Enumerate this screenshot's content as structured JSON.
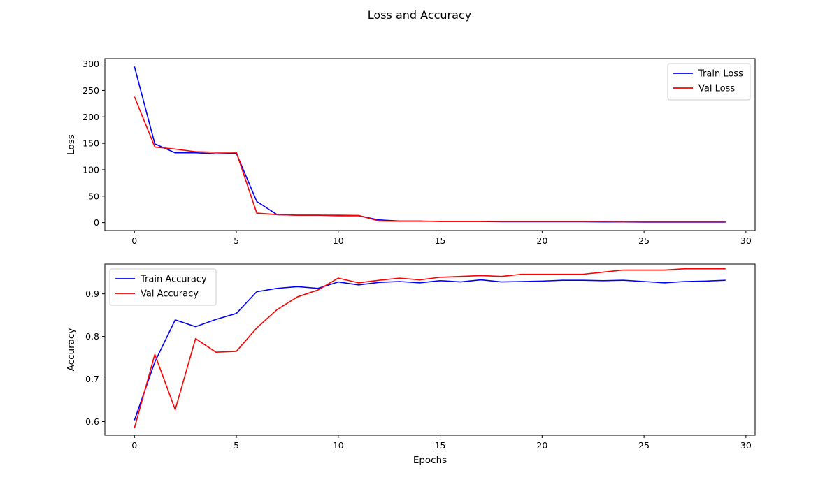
{
  "chart_data": {
    "title": "Loss and Accuracy",
    "subplots": [
      {
        "type": "line",
        "ylabel": "Loss",
        "xlabel": "",
        "xlim": [
          -1.45,
          30.45
        ],
        "ylim": [
          -15,
          310
        ],
        "xticks": [
          0,
          5,
          10,
          15,
          20,
          25,
          30
        ],
        "yticks": [
          0,
          50,
          100,
          150,
          200,
          250,
          300
        ],
        "grid": false,
        "legend_position": "upper-right",
        "x": [
          0,
          1,
          2,
          3,
          4,
          5,
          6,
          7,
          8,
          9,
          10,
          11,
          12,
          13,
          14,
          15,
          16,
          17,
          18,
          19,
          20,
          21,
          22,
          23,
          24,
          25,
          26,
          27,
          28,
          29
        ],
        "series": [
          {
            "name": "Train Loss",
            "color": "#0000ff",
            "values": [
              295,
              149,
              132,
              132,
              130,
              131,
              40,
              15,
              14,
              14,
              13,
              13,
              5,
              3,
              3,
              2,
              2,
              2,
              1.5,
              1.5,
              1.5,
              1.5,
              1.5,
              1.3,
              1.2,
              1,
              1,
              1,
              0.9,
              0.9
            ]
          },
          {
            "name": "Val Loss",
            "color": "#ff0000",
            "values": [
              238,
              143,
              139,
              134,
              133,
              133,
              18,
              15,
              14,
              14,
              14,
              13.5,
              3,
              2.5,
              2.5,
              2.5,
              2.5,
              2.5,
              2,
              2,
              2,
              2,
              2,
              2,
              1.5,
              1.5,
              1.5,
              1.5,
              1.5,
              1.5
            ]
          }
        ]
      },
      {
        "type": "line",
        "ylabel": "Accuracy",
        "xlabel": "Epochs",
        "xlim": [
          -1.45,
          30.45
        ],
        "ylim": [
          0.568,
          0.97
        ],
        "xticks": [
          0,
          5,
          10,
          15,
          20,
          25,
          30
        ],
        "yticks": [
          0.6,
          0.7,
          0.8,
          0.9
        ],
        "grid": false,
        "legend_position": "upper-left",
        "x": [
          0,
          1,
          2,
          3,
          4,
          5,
          6,
          7,
          8,
          9,
          10,
          11,
          12,
          13,
          14,
          15,
          16,
          17,
          18,
          19,
          20,
          21,
          22,
          23,
          24,
          25,
          26,
          27,
          28,
          29
        ],
        "series": [
          {
            "name": "Train Accuracy",
            "color": "#0000ff",
            "values": [
              0.603,
              0.74,
              0.839,
              0.823,
              0.84,
              0.854,
              0.905,
              0.913,
              0.917,
              0.913,
              0.928,
              0.921,
              0.927,
              0.929,
              0.926,
              0.931,
              0.928,
              0.933,
              0.928,
              0.929,
              0.93,
              0.932,
              0.932,
              0.931,
              0.932,
              0.929,
              0.926,
              0.929,
              0.93,
              0.932
            ]
          },
          {
            "name": "Val Accuracy",
            "color": "#ff0000",
            "values": [
              0.585,
              0.758,
              0.628,
              0.795,
              0.763,
              0.765,
              0.82,
              0.863,
              0.893,
              0.909,
              0.937,
              0.926,
              0.932,
              0.937,
              0.933,
              0.939,
              0.941,
              0.943,
              0.941,
              0.946,
              0.946,
              0.946,
              0.946,
              0.951,
              0.956,
              0.956,
              0.956,
              0.959,
              0.959,
              0.959
            ]
          }
        ]
      }
    ]
  }
}
